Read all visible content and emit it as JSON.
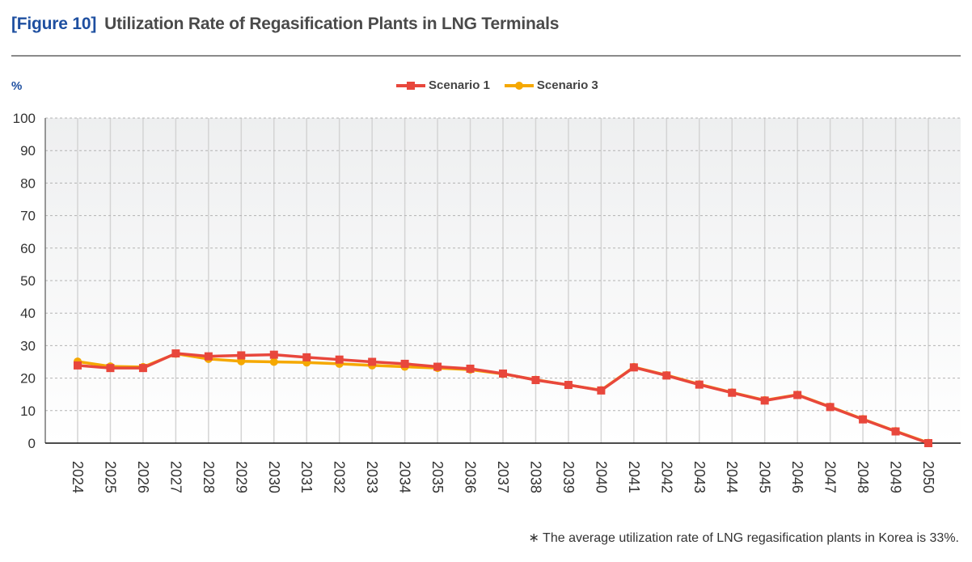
{
  "header": {
    "figure_label": "[Figure 10]",
    "title": "Utilization Rate of Regasification Plants in LNG Terminals"
  },
  "footnote": "∗ The average utilization rate of LNG regasification plants in Korea is 33%.",
  "colors": {
    "scenario1": "#e8473c",
    "scenario3": "#f5a800",
    "figure_label": "#1e4fa0",
    "title": "#4a4a4a"
  },
  "chart_data": {
    "type": "line",
    "title": "Utilization Rate of Regasification Plants in LNG Terminals",
    "xlabel": "",
    "ylabel": "%",
    "ylim": [
      0,
      100
    ],
    "yticks": [
      0,
      10,
      20,
      30,
      40,
      50,
      60,
      70,
      80,
      90,
      100
    ],
    "grid": "horizontal dashed + vertical solid",
    "legend_position": "top-center",
    "categories": [
      "2024",
      "2025",
      "2026",
      "2027",
      "2028",
      "2029",
      "2030",
      "2031",
      "2032",
      "2033",
      "2034",
      "2035",
      "2036",
      "2037",
      "2038",
      "2039",
      "2040",
      "2041",
      "2042",
      "2043",
      "2044",
      "2045",
      "2046",
      "2047",
      "2048",
      "2049",
      "2050"
    ],
    "series": [
      {
        "name": "Scenario 1",
        "marker": "square",
        "color": "#e8473c",
        "values": [
          23.9,
          23.1,
          23.1,
          27.6,
          26.7,
          27.0,
          27.2,
          26.4,
          25.7,
          25.0,
          24.4,
          23.5,
          22.9,
          21.4,
          19.4,
          17.9,
          16.2,
          23.3,
          20.8,
          18.0,
          15.5,
          13.1,
          14.8,
          11.1,
          7.3,
          3.6,
          0.0
        ]
      },
      {
        "name": "Scenario 3",
        "marker": "circle",
        "color": "#f5a800",
        "values": [
          25.1,
          23.6,
          23.4,
          27.5,
          25.9,
          25.2,
          25.0,
          24.8,
          24.4,
          23.9,
          23.5,
          23.1,
          22.6,
          21.3,
          19.5,
          17.9,
          16.3,
          23.4,
          20.9,
          18.1,
          15.6,
          13.2,
          14.9,
          11.2,
          7.4,
          3.7,
          0.1
        ]
      }
    ],
    "annotations": [
      "∗ The average utilization rate of LNG regasification plants in Korea is 33%."
    ]
  }
}
